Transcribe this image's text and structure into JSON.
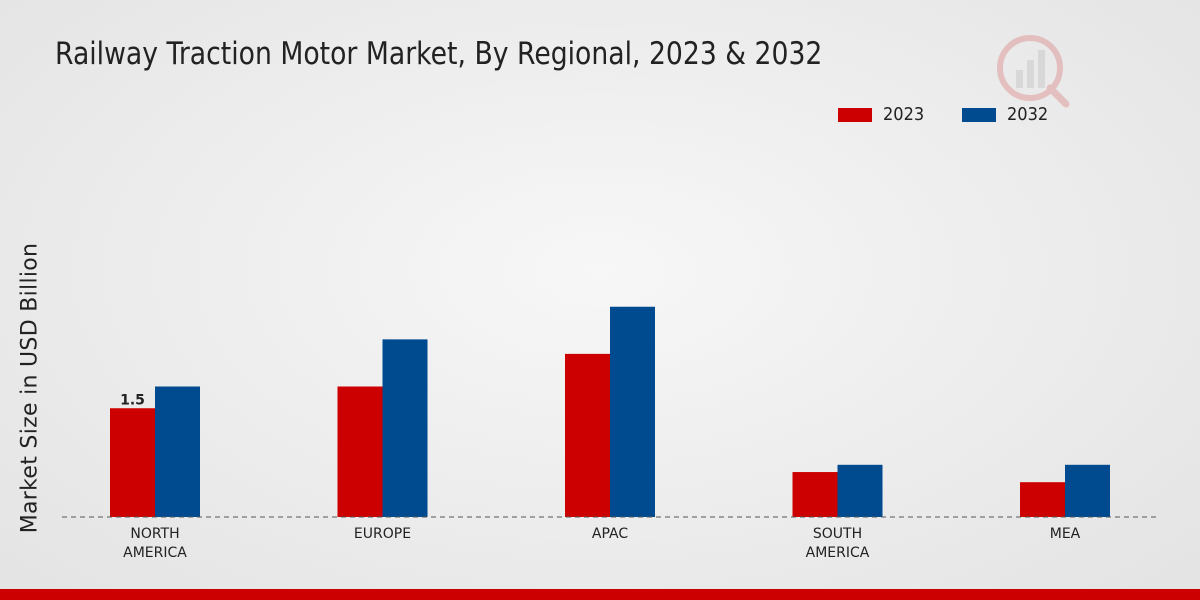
{
  "chart_data": {
    "type": "bar",
    "title": "Railway Traction Motor Market, By Regional, 2023 & 2032",
    "xlabel": "",
    "ylabel": "Market Size in USD Billion",
    "categories": [
      [
        "NORTH",
        "AMERICA"
      ],
      [
        "EUROPE"
      ],
      [
        "APAC"
      ],
      [
        "SOUTH",
        "AMERICA"
      ],
      [
        "MEA"
      ]
    ],
    "series": [
      {
        "name": "2023",
        "color": "#cc0000",
        "values": [
          1.5,
          1.8,
          2.25,
          0.62,
          0.48
        ]
      },
      {
        "name": "2032",
        "color": "#004a8f",
        "values": [
          1.8,
          2.45,
          2.9,
          0.72,
          0.72
        ]
      }
    ],
    "data_labels": [
      {
        "series": 0,
        "index": 0,
        "text": "1.5"
      }
    ],
    "ylim": [
      0,
      6
    ],
    "grid": false,
    "legend_position": "top-right"
  }
}
